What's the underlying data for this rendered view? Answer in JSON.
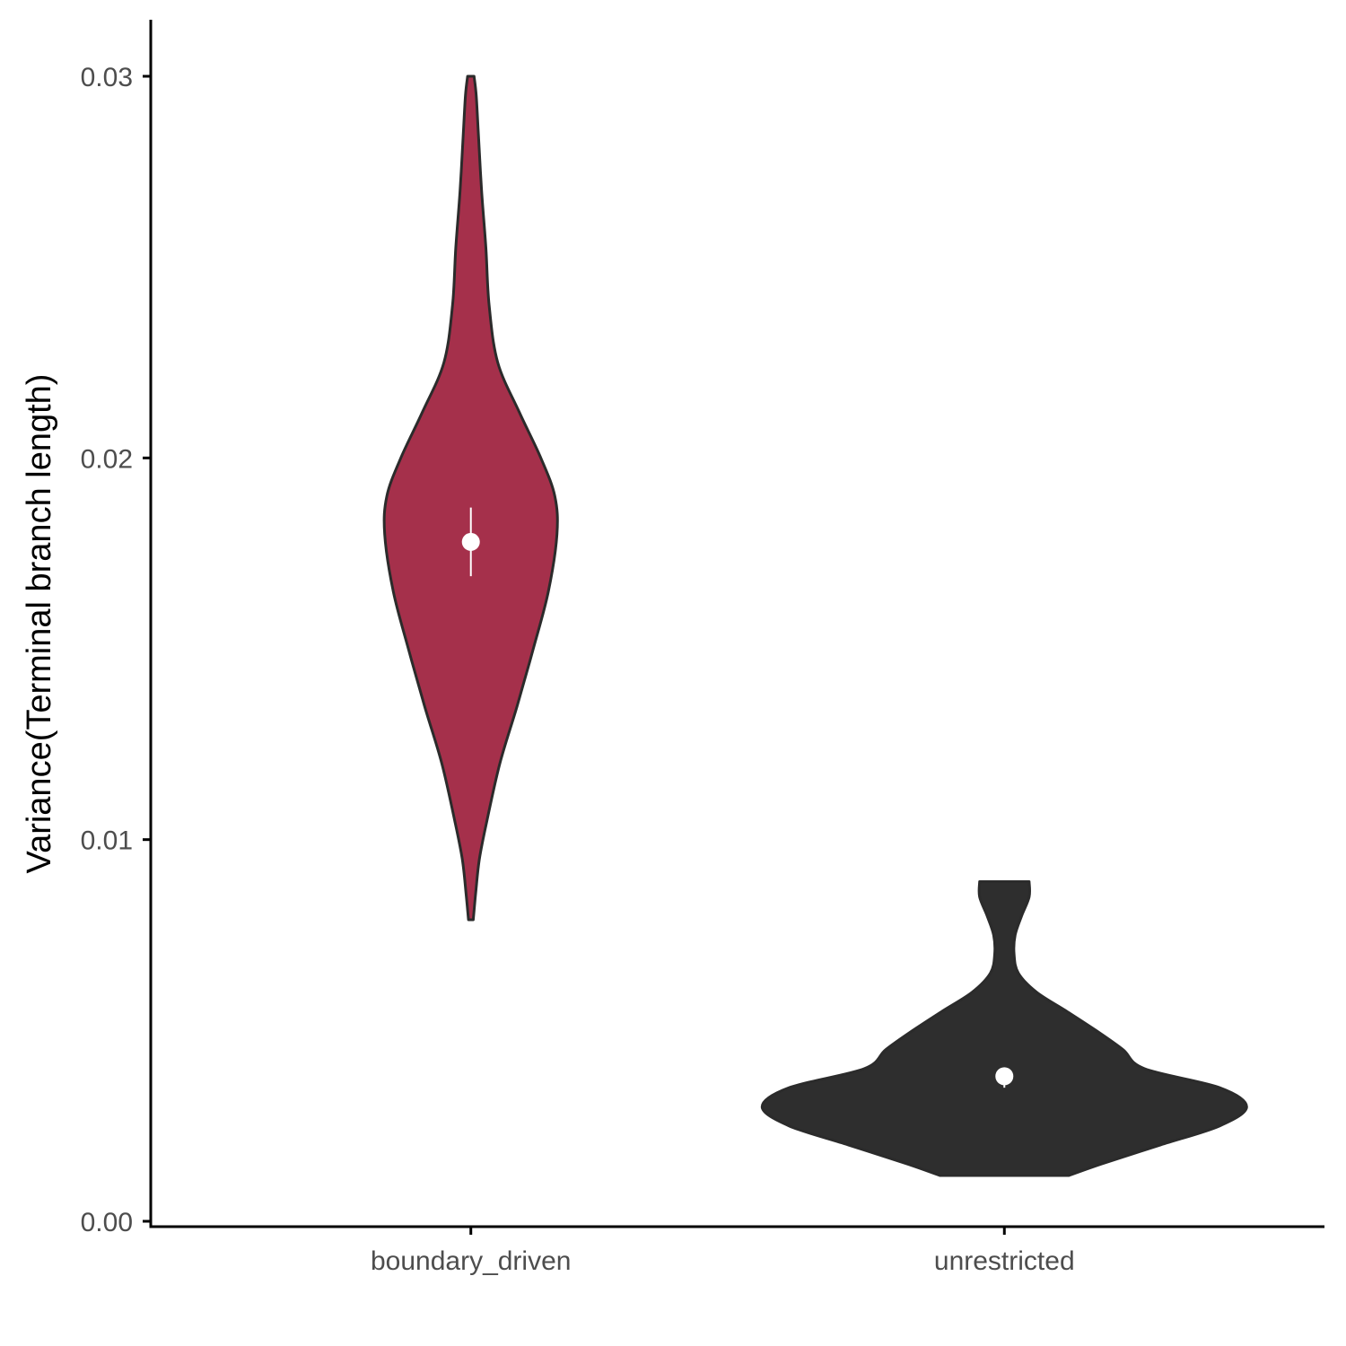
{
  "chart_data": {
    "type": "violin",
    "title": "",
    "xlabel": "",
    "ylabel": "Variance(Terminal branch length)",
    "ylim": [
      0,
      0.0315
    ],
    "y_ticks": [
      0,
      0.01,
      0.02,
      0.03
    ],
    "y_tick_labels": [
      "0.00",
      "0.01",
      "0.02",
      "0.03"
    ],
    "grid": false,
    "legend": "none",
    "categories": [
      "boundary_driven",
      "unrestricted"
    ],
    "groups": [
      {
        "category": "boundary_driven",
        "fill": "#a5304b",
        "min": 0.0079,
        "max": 0.03,
        "mean": 0.0178,
        "ci": [
          0.0169,
          0.0187
        ],
        "density_profile": [
          [
            0.0079,
            0.022
          ],
          [
            0.0086,
            0.045
          ],
          [
            0.0095,
            0.08
          ],
          [
            0.0105,
            0.15
          ],
          [
            0.012,
            0.27
          ],
          [
            0.0135,
            0.43
          ],
          [
            0.015,
            0.58
          ],
          [
            0.0165,
            0.72
          ],
          [
            0.018,
            0.8
          ],
          [
            0.019,
            0.78
          ],
          [
            0.02,
            0.65
          ],
          [
            0.0212,
            0.45
          ],
          [
            0.0225,
            0.25
          ],
          [
            0.024,
            0.17
          ],
          [
            0.0255,
            0.14
          ],
          [
            0.027,
            0.1
          ],
          [
            0.0285,
            0.07
          ],
          [
            0.0295,
            0.05
          ],
          [
            0.03,
            0.03
          ]
        ]
      },
      {
        "category": "unrestricted",
        "fill": "#2e2e2e",
        "min": 0.0012,
        "max": 0.0089,
        "mean": 0.0038,
        "ci": [
          0.0035,
          0.004
        ],
        "density_profile": [
          [
            0.0012,
            0.6
          ],
          [
            0.0015,
            0.9
          ],
          [
            0.002,
            1.45
          ],
          [
            0.0025,
            2.0
          ],
          [
            0.003,
            2.25
          ],
          [
            0.0035,
            2.0
          ],
          [
            0.004,
            1.3
          ],
          [
            0.0045,
            1.1
          ],
          [
            0.005,
            0.85
          ],
          [
            0.0055,
            0.58
          ],
          [
            0.006,
            0.3
          ],
          [
            0.0065,
            0.13
          ],
          [
            0.007,
            0.09
          ],
          [
            0.0075,
            0.1
          ],
          [
            0.008,
            0.16
          ],
          [
            0.0085,
            0.23
          ],
          [
            0.0089,
            0.23
          ]
        ]
      }
    ]
  }
}
